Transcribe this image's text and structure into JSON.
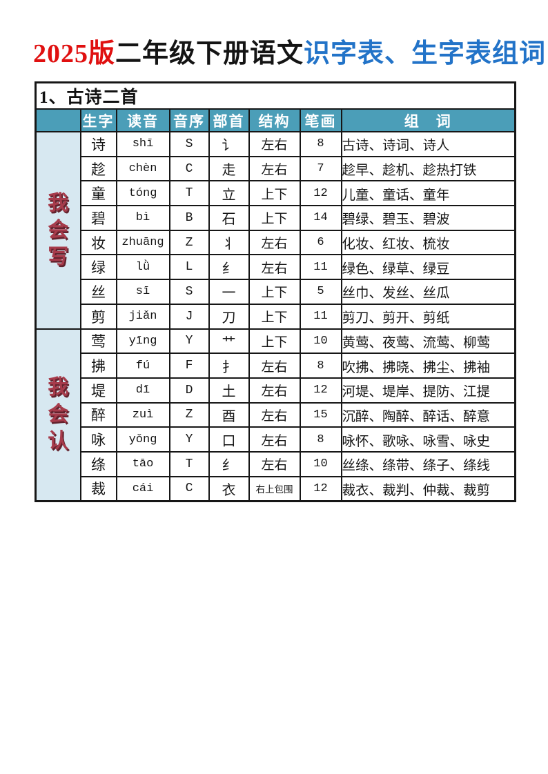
{
  "title": {
    "edition": "2025版",
    "grade": "二年级下册语文",
    "tables": "识字表、生字表组词"
  },
  "table": {
    "section_title": "1、古诗二首",
    "headers": [
      "生字",
      "读音",
      "音序",
      "部首",
      "结构",
      "笔画",
      "组　词"
    ],
    "groups": [
      {
        "id": "write",
        "label": "我会写",
        "rows": [
          {
            "char": "诗",
            "pinyin": "shī",
            "initial": "S",
            "radical": "讠",
            "structure": "左右",
            "strokes": "8",
            "words": "古诗、诗词、诗人"
          },
          {
            "char": "趁",
            "pinyin": "chèn",
            "initial": "C",
            "radical": "走",
            "structure": "左右",
            "strokes": "7",
            "words": "趁早、趁机、趁热打铁"
          },
          {
            "char": "童",
            "pinyin": "tóng",
            "initial": "T",
            "radical": "立",
            "structure": "上下",
            "strokes": "12",
            "words": "儿童、童话、童年"
          },
          {
            "char": "碧",
            "pinyin": "bì",
            "initial": "B",
            "radical": "石",
            "structure": "上下",
            "strokes": "14",
            "words": "碧绿、碧玉、碧波"
          },
          {
            "char": "妆",
            "pinyin": "zhuāng",
            "initial": "Z",
            "radical": "丬",
            "structure": "左右",
            "strokes": "6",
            "words": "化妆、红妆、梳妆"
          },
          {
            "char": "绿",
            "pinyin": "lǜ",
            "initial": "L",
            "radical": "纟",
            "structure": "左右",
            "strokes": "11",
            "words": "绿色、绿草、绿豆"
          },
          {
            "char": "丝",
            "pinyin": "sī",
            "initial": "S",
            "radical": "一",
            "structure": "上下",
            "strokes": "5",
            "words": "丝巾、发丝、丝瓜"
          },
          {
            "char": "剪",
            "pinyin": "jiǎn",
            "initial": "J",
            "radical": "刀",
            "structure": "上下",
            "strokes": "11",
            "words": "剪刀、剪开、剪纸"
          }
        ]
      },
      {
        "id": "recognize",
        "label": "我会认",
        "rows": [
          {
            "char": "莺",
            "pinyin": "yīng",
            "initial": "Y",
            "radical": "艹",
            "structure": "上下",
            "strokes": "10",
            "words": "黄莺、夜莺、流莺、柳莺"
          },
          {
            "char": "拂",
            "pinyin": "fú",
            "initial": "F",
            "radical": "扌",
            "structure": "左右",
            "strokes": "8",
            "words": "吹拂、拂晓、拂尘、拂袖"
          },
          {
            "char": "堤",
            "pinyin": "dī",
            "initial": "D",
            "radical": "土",
            "structure": "左右",
            "strokes": "12",
            "words": "河堤、堤岸、提防、江提"
          },
          {
            "char": "醉",
            "pinyin": "zuì",
            "initial": "Z",
            "radical": "酉",
            "structure": "左右",
            "strokes": "15",
            "words": "沉醉、陶醉、醉话、醉意"
          },
          {
            "char": "咏",
            "pinyin": "yǒng",
            "initial": "Y",
            "radical": "口",
            "structure": "左右",
            "strokes": "8",
            "words": "咏怀、歌咏、咏雪、咏史"
          },
          {
            "char": "绦",
            "pinyin": "tāo",
            "initial": "T",
            "radical": "纟",
            "structure": "左右",
            "strokes": "10",
            "words": "丝绦、绦带、绦子、绦线"
          },
          {
            "char": "裁",
            "pinyin": "cái",
            "initial": "C",
            "radical": "衣",
            "structure": "右上包围",
            "strokes": "12",
            "words": "裁衣、裁判、仲裁、裁剪"
          }
        ]
      }
    ]
  },
  "colors": {
    "title_red": "#e01010",
    "title_blue": "#2273c8",
    "header_bg": "#4b9eb8",
    "header_text": "#ffffff",
    "group_cell_bg": "#d7e8f1",
    "group_cell_text": "#a73b4b",
    "border": "#161616"
  }
}
